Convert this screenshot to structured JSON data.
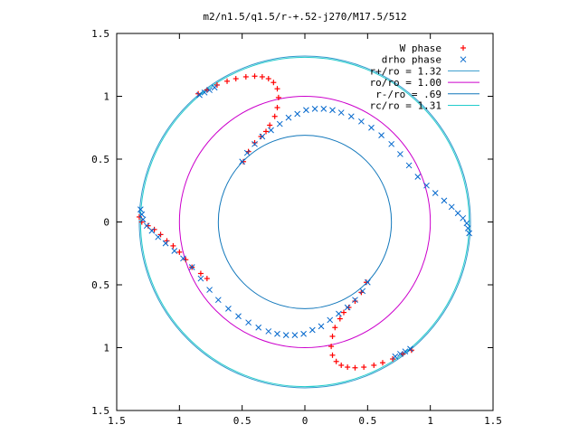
{
  "chart_data": {
    "type": "scatter",
    "title": "m2/n1.5/q1.5/r-+.52-j270/M17.5/512",
    "xlabel": "",
    "ylabel": "",
    "xlim": [
      -1.5,
      1.5
    ],
    "ylim": [
      -1.5,
      1.5
    ],
    "x_ticks": [
      -1.5,
      -1,
      -0.5,
      0,
      0.5,
      1,
      1.5
    ],
    "y_ticks": [
      -1.5,
      -1,
      -0.5,
      0,
      0.5,
      1,
      1.5
    ],
    "x_tick_labels": [
      "1.5",
      "1",
      "0.5",
      "0",
      "0.5",
      "1",
      "1.5"
    ],
    "y_tick_labels": [
      "1.5",
      "1",
      "0.5",
      "0",
      "0.5",
      "1",
      "1.5"
    ],
    "grid": false,
    "legend_position": "top-right",
    "series": [
      {
        "name": "W phase",
        "marker": "+",
        "color": "#ff0000",
        "points": [
          [
            -0.85,
            1.02
          ],
          [
            -0.78,
            1.05
          ],
          [
            -0.7,
            1.09
          ],
          [
            -0.62,
            1.12
          ],
          [
            -0.55,
            1.14
          ],
          [
            -0.47,
            1.155
          ],
          [
            -0.4,
            1.16
          ],
          [
            -0.34,
            1.155
          ],
          [
            -0.29,
            1.14
          ],
          [
            -0.25,
            1.11
          ],
          [
            -0.22,
            1.06
          ],
          [
            -0.21,
            0.99
          ],
          [
            -0.22,
            0.91
          ],
          [
            -0.24,
            0.84
          ],
          [
            -0.28,
            0.77
          ],
          [
            -0.31,
            0.72
          ],
          [
            -0.35,
            0.68
          ],
          [
            -0.4,
            0.63
          ],
          [
            -0.45,
            0.56
          ],
          [
            -0.49,
            0.48
          ],
          [
            0.85,
            -1.02
          ],
          [
            0.78,
            -1.05
          ],
          [
            0.7,
            -1.09
          ],
          [
            0.62,
            -1.12
          ],
          [
            0.55,
            -1.14
          ],
          [
            0.47,
            -1.155
          ],
          [
            0.4,
            -1.16
          ],
          [
            0.34,
            -1.155
          ],
          [
            0.29,
            -1.14
          ],
          [
            0.25,
            -1.11
          ],
          [
            0.22,
            -1.06
          ],
          [
            0.21,
            -0.99
          ],
          [
            0.22,
            -0.91
          ],
          [
            0.24,
            -0.84
          ],
          [
            0.28,
            -0.77
          ],
          [
            0.31,
            -0.72
          ],
          [
            0.35,
            -0.68
          ],
          [
            0.4,
            -0.63
          ],
          [
            0.45,
            -0.56
          ],
          [
            0.49,
            -0.48
          ],
          [
            -0.9,
            -0.36
          ],
          [
            -0.95,
            -0.3
          ],
          [
            -1.0,
            -0.24
          ],
          [
            -1.05,
            -0.19
          ],
          [
            -1.1,
            -0.15
          ],
          [
            -1.15,
            -0.1
          ],
          [
            -1.2,
            -0.06
          ],
          [
            -1.25,
            -0.03
          ],
          [
            -1.3,
            0.0
          ],
          [
            -1.32,
            0.04
          ],
          [
            -0.78,
            -0.45
          ],
          [
            -0.83,
            -0.41
          ]
        ]
      },
      {
        "name": "drho phase",
        "marker": "x",
        "color": "#0066cc",
        "points": [
          [
            -0.5,
            0.48
          ],
          [
            -0.46,
            0.55
          ],
          [
            -0.4,
            0.62
          ],
          [
            -0.34,
            0.68
          ],
          [
            -0.27,
            0.73
          ],
          [
            -0.2,
            0.78
          ],
          [
            -0.13,
            0.83
          ],
          [
            -0.06,
            0.86
          ],
          [
            0.01,
            0.89
          ],
          [
            0.08,
            0.9
          ],
          [
            0.15,
            0.9
          ],
          [
            0.22,
            0.89
          ],
          [
            0.29,
            0.87
          ],
          [
            0.37,
            0.84
          ],
          [
            0.45,
            0.8
          ],
          [
            0.53,
            0.75
          ],
          [
            0.61,
            0.69
          ],
          [
            0.69,
            0.62
          ],
          [
            0.76,
            0.54
          ],
          [
            0.83,
            0.45
          ],
          [
            0.9,
            0.36
          ],
          [
            0.97,
            0.29
          ],
          [
            1.04,
            0.23
          ],
          [
            1.11,
            0.17
          ],
          [
            1.17,
            0.12
          ],
          [
            1.22,
            0.07
          ],
          [
            1.26,
            0.03
          ],
          [
            1.29,
            -0.01
          ],
          [
            1.3,
            -0.05
          ],
          [
            1.31,
            -0.09
          ],
          [
            0.5,
            -0.48
          ],
          [
            0.46,
            -0.55
          ],
          [
            0.4,
            -0.62
          ],
          [
            0.34,
            -0.68
          ],
          [
            0.27,
            -0.73
          ],
          [
            0.2,
            -0.78
          ],
          [
            0.13,
            -0.83
          ],
          [
            0.06,
            -0.86
          ],
          [
            -0.01,
            -0.89
          ],
          [
            -0.08,
            -0.9
          ],
          [
            -0.15,
            -0.9
          ],
          [
            -0.22,
            -0.89
          ],
          [
            -0.29,
            -0.87
          ],
          [
            -0.37,
            -0.84
          ],
          [
            -0.45,
            -0.8
          ],
          [
            -0.53,
            -0.75
          ],
          [
            -0.61,
            -0.69
          ],
          [
            -0.69,
            -0.62
          ],
          [
            -0.76,
            -0.54
          ],
          [
            -0.83,
            -0.45
          ],
          [
            -0.9,
            -0.36
          ],
          [
            -0.97,
            -0.29
          ],
          [
            -1.04,
            -0.23
          ],
          [
            -1.11,
            -0.17
          ],
          [
            -1.17,
            -0.12
          ],
          [
            -1.22,
            -0.07
          ],
          [
            -1.26,
            -0.03
          ],
          [
            -1.29,
            0.02
          ],
          [
            -1.3,
            0.06
          ],
          [
            -1.31,
            0.1
          ],
          [
            -0.84,
            1.01
          ],
          [
            -0.8,
            1.03
          ],
          [
            -0.76,
            1.05
          ],
          [
            -0.72,
            1.07
          ],
          [
            0.84,
            -1.01
          ],
          [
            0.8,
            -1.03
          ],
          [
            0.76,
            -1.05
          ],
          [
            0.72,
            -1.07
          ]
        ]
      }
    ],
    "circles": [
      {
        "name": "r+/ro = 1.32",
        "radius": 1.32,
        "color": "#3399cc"
      },
      {
        "name": "ro/ro = 1.00",
        "radius": 1.0,
        "color": "#cc00cc"
      },
      {
        "name": "r-/ro = .69",
        "radius": 0.69,
        "color": "#1177bb"
      },
      {
        "name": "rc/ro = 1.31",
        "radius": 1.31,
        "color": "#22cccc"
      }
    ]
  }
}
